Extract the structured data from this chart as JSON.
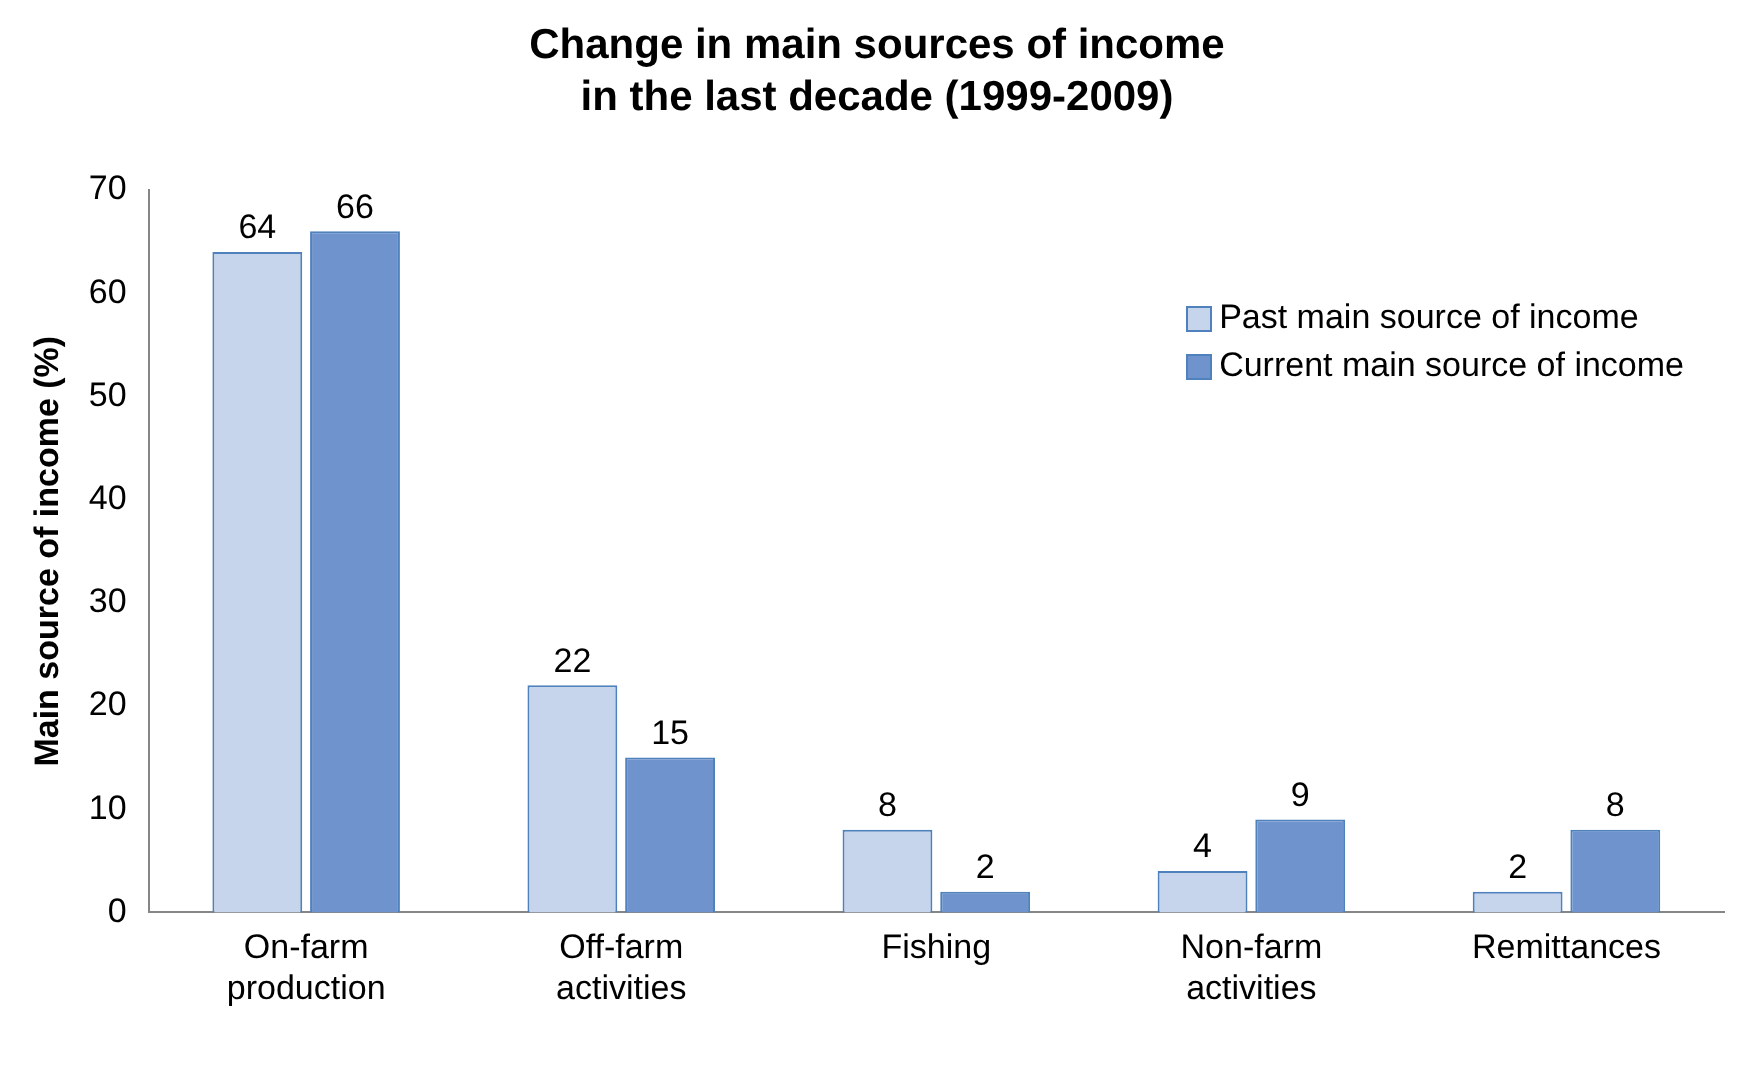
{
  "chart_data": {
    "type": "bar",
    "title": "Change in main sources of income in the last decade (1999-2009)",
    "ylabel": "Main source of income (%)",
    "categories": [
      "On-farm production",
      "Off-farm activities",
      "Fishing",
      "Non-farm activities",
      "Remittances"
    ],
    "series": [
      {
        "name": "Past main source of income",
        "color": "#c6d4ec",
        "values": [
          64,
          22,
          8,
          4,
          2
        ]
      },
      {
        "name": "Current main source of income",
        "color": "#6f93cc",
        "values": [
          66,
          15,
          2,
          9,
          8
        ]
      }
    ],
    "ylim": [
      0,
      70
    ],
    "yticks": [
      0,
      10,
      20,
      30,
      40,
      50,
      60,
      70
    ],
    "grid": false,
    "legend": "top right",
    "data_labels": true
  }
}
